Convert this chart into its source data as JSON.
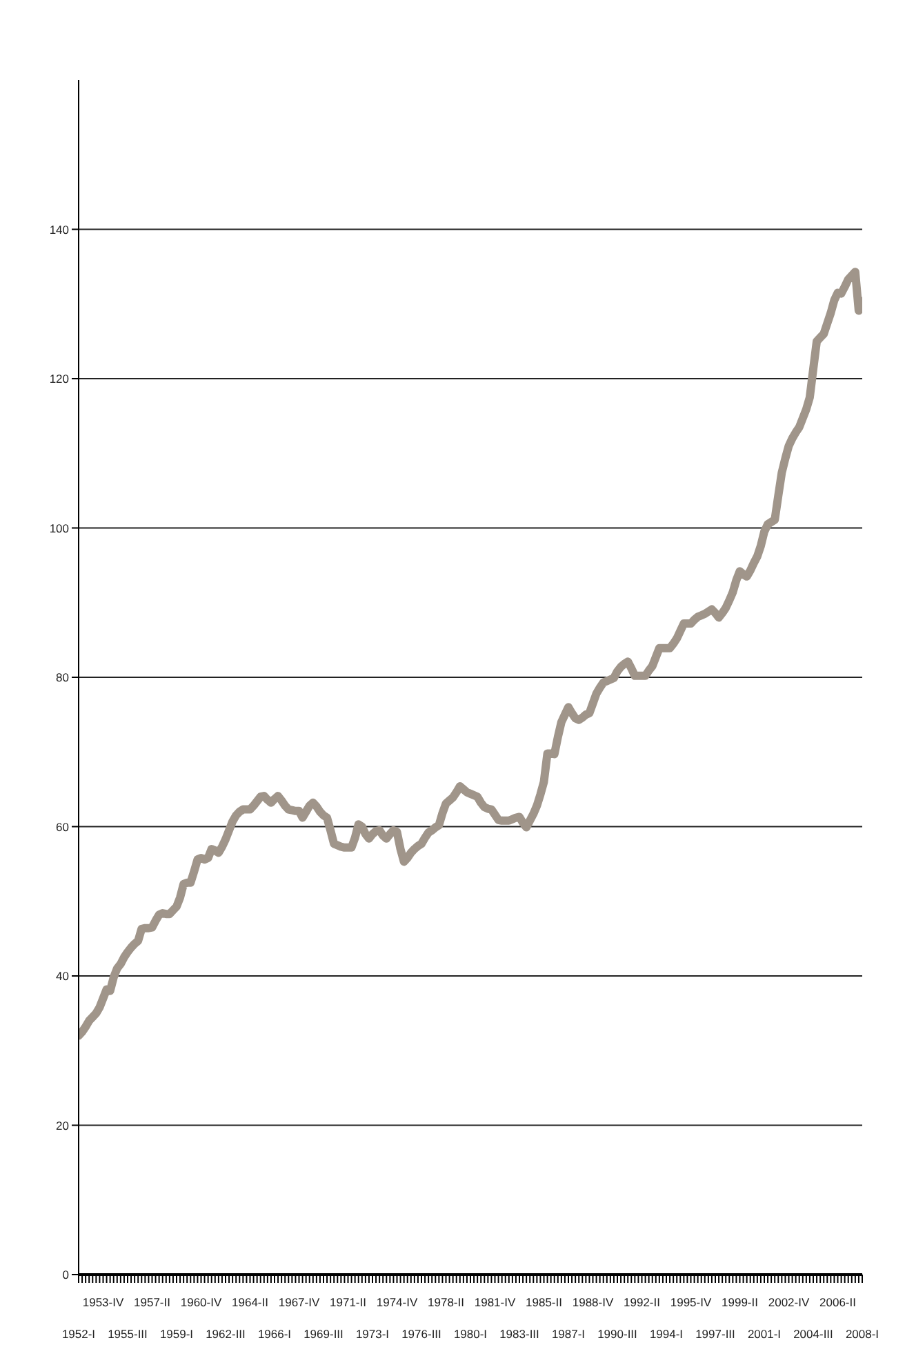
{
  "chart_data": {
    "type": "line",
    "categories": [
      "1952-I",
      null,
      null,
      null,
      null,
      null,
      null,
      "1953-IV",
      null,
      null,
      null,
      null,
      null,
      null,
      "1955-III",
      null,
      null,
      null,
      null,
      null,
      null,
      "1957-II",
      null,
      null,
      null,
      null,
      null,
      null,
      "1959-I",
      null,
      null,
      null,
      null,
      null,
      null,
      "1960-IV",
      null,
      null,
      null,
      null,
      null,
      null,
      "1962-III",
      null,
      null,
      null,
      null,
      null,
      null,
      "1964-II",
      null,
      null,
      null,
      null,
      null,
      null,
      "1966-I",
      null,
      null,
      null,
      null,
      null,
      null,
      "1967-IV",
      null,
      null,
      null,
      null,
      null,
      null,
      "1969-III",
      null,
      null,
      null,
      null,
      null,
      null,
      "1971-II",
      null,
      null,
      null,
      null,
      null,
      null,
      "1973-I",
      null,
      null,
      null,
      null,
      null,
      null,
      "1974-IV",
      null,
      null,
      null,
      null,
      null,
      null,
      "1976-III",
      null,
      null,
      null,
      null,
      null,
      null,
      "1978-II",
      null,
      null,
      null,
      null,
      null,
      null,
      "1980-I",
      null,
      null,
      null,
      null,
      null,
      null,
      "1981-IV",
      null,
      null,
      null,
      null,
      null,
      null,
      "1983-III",
      null,
      null,
      null,
      null,
      null,
      null,
      "1985-II",
      null,
      null,
      null,
      null,
      null,
      null,
      "1987-I",
      null,
      null,
      null,
      null,
      null,
      null,
      "1988-IV",
      null,
      null,
      null,
      null,
      null,
      null,
      "1990-III",
      null,
      null,
      null,
      null,
      null,
      null,
      "1992-II",
      null,
      null,
      null,
      null,
      null,
      null,
      "1994-I",
      null,
      null,
      null,
      null,
      null,
      null,
      "1995-IV",
      null,
      null,
      null,
      null,
      null,
      null,
      "1997-III",
      null,
      null,
      null,
      null,
      null,
      null,
      "1999-II",
      null,
      null,
      null,
      null,
      null,
      null,
      "2001-I",
      null,
      null,
      null,
      null,
      null,
      null,
      "2002-IV",
      null,
      null,
      null,
      null,
      null,
      null,
      "2004-III",
      null,
      null,
      null,
      null,
      null,
      null,
      "2006-II",
      null,
      null,
      null,
      null,
      null,
      null,
      "2008-I"
    ],
    "series": [
      {
        "color": "#a0958a",
        "values": [
          32,
          32.5,
          33.2,
          34,
          34.5,
          35,
          35.8,
          37,
          38.2,
          38,
          39.8,
          41,
          41.6,
          42.5,
          43.2,
          43.8,
          44.3,
          44.7,
          46.3,
          46.4,
          46.4,
          46.5,
          47.4,
          48.2,
          48.4,
          48.3,
          48.3,
          48.8,
          49.3,
          50.5,
          52.3,
          52.5,
          52.5,
          54,
          55.6,
          55.8,
          55.6,
          55.8,
          57,
          56.8,
          56.5,
          57.3,
          58.3,
          59.5,
          60.7,
          61.5,
          62,
          62.3,
          62.3,
          62.3,
          62.8,
          63.4,
          64,
          64.1,
          63.6,
          63.2,
          63.7,
          64.1,
          63.5,
          62.8,
          62.3,
          62.2,
          62.1,
          62.1,
          61.2,
          62,
          62.8,
          63.2,
          62.7,
          62,
          61.5,
          61.2,
          59.5,
          57.7,
          57.5,
          57.3,
          57.2,
          57.2,
          57.2,
          58.5,
          60.3,
          60,
          59,
          58.4,
          59,
          59.4,
          59.5,
          58.8,
          58.4,
          59,
          59.5,
          59.3,
          57,
          55.3,
          55.8,
          56.5,
          57,
          57.4,
          57.7,
          58.5,
          59.2,
          59.5,
          59.9,
          60.2,
          61.8,
          63.1,
          63.5,
          63.9,
          64.6,
          65.4,
          65,
          64.6,
          64.4,
          64.2,
          64,
          63.2,
          62.6,
          62.4,
          62.3,
          61.6,
          60.9,
          60.8,
          60.8,
          60.8,
          61,
          61.2,
          61.3,
          60.5,
          59.9,
          60.8,
          61.7,
          62.8,
          64.3,
          66,
          69.8,
          69.8,
          69.7,
          72,
          74,
          75,
          76,
          75.2,
          74.5,
          74.3,
          74.6,
          75,
          75.2,
          76.5,
          77.8,
          78.6,
          79.3,
          79.5,
          79.7,
          79.9,
          80.8,
          81.4,
          81.8,
          82.1,
          81.2,
          80.2,
          80.2,
          80.2,
          80.2,
          80.9,
          81.5,
          82.7,
          83.9,
          83.9,
          83.9,
          83.9,
          84.5,
          85.2,
          86.2,
          87.2,
          87.2,
          87.2,
          87.7,
          88.1,
          88.3,
          88.5,
          88.8,
          89.1,
          88.6,
          88,
          88.6,
          89.3,
          90.3,
          91.4,
          93,
          94.2,
          93.8,
          93.5,
          94.3,
          95.3,
          96.2,
          97.6,
          99.5,
          100.5,
          100.8,
          101.1,
          104.3,
          107.4,
          109.3,
          111,
          112,
          112.8,
          113.5,
          114.7,
          115.9,
          117.5,
          121.3,
          125,
          125.5,
          126,
          127.4,
          128.8,
          130.5,
          131.5,
          131.4,
          132.3,
          133.3,
          133.8,
          134.3,
          129.1,
          130.4
        ]
      }
    ],
    "ylim": [
      0,
      160
    ],
    "yticks": [
      0,
      20,
      40,
      60,
      80,
      100,
      120,
      140
    ],
    "grid": "y",
    "legend": false,
    "marker": "none",
    "line_style": "solid"
  }
}
